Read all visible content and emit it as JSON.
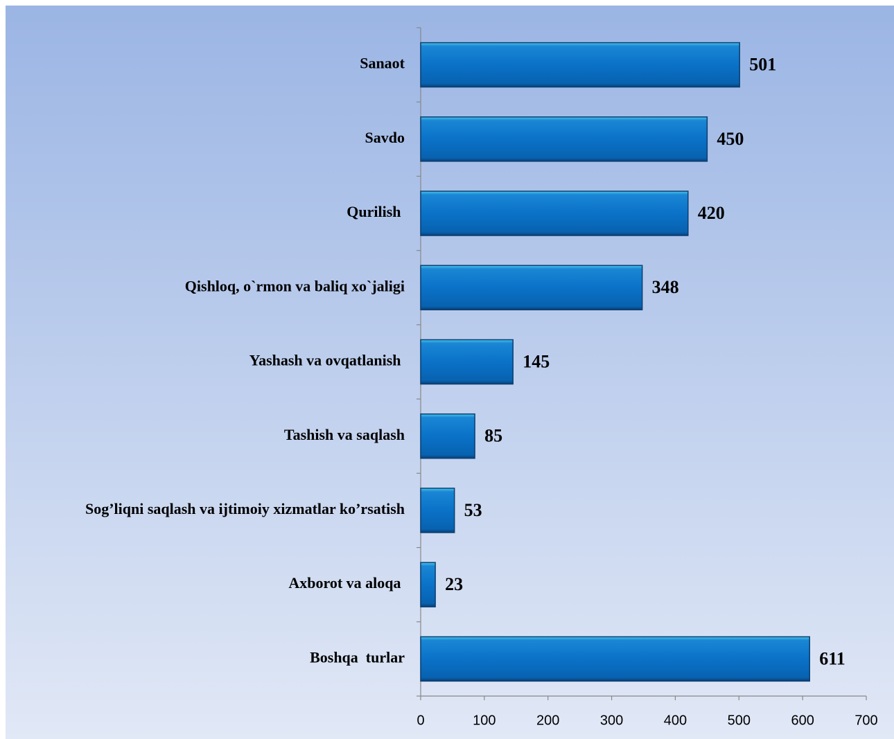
{
  "chart_data": {
    "type": "bar",
    "orientation": "horizontal",
    "categories": [
      "Sanaot",
      "Savdo",
      "Qurilish ",
      "Qishloq, o`rmon va baliq xo`jaligi",
      "Yashash va ovqatlanish ",
      "Tashish va saqlash",
      "Sog’liqni saqlash va ijtimoiy xizmatlar ko’rsatish",
      "Axborot va aloqa ",
      "Boshqa  turlar"
    ],
    "values": [
      501,
      450,
      420,
      348,
      145,
      85,
      53,
      23,
      611
    ],
    "color": "#0a72c8",
    "xlim": [
      0,
      700
    ],
    "xticks": [
      0,
      100,
      200,
      300,
      400,
      500,
      600,
      700
    ]
  }
}
